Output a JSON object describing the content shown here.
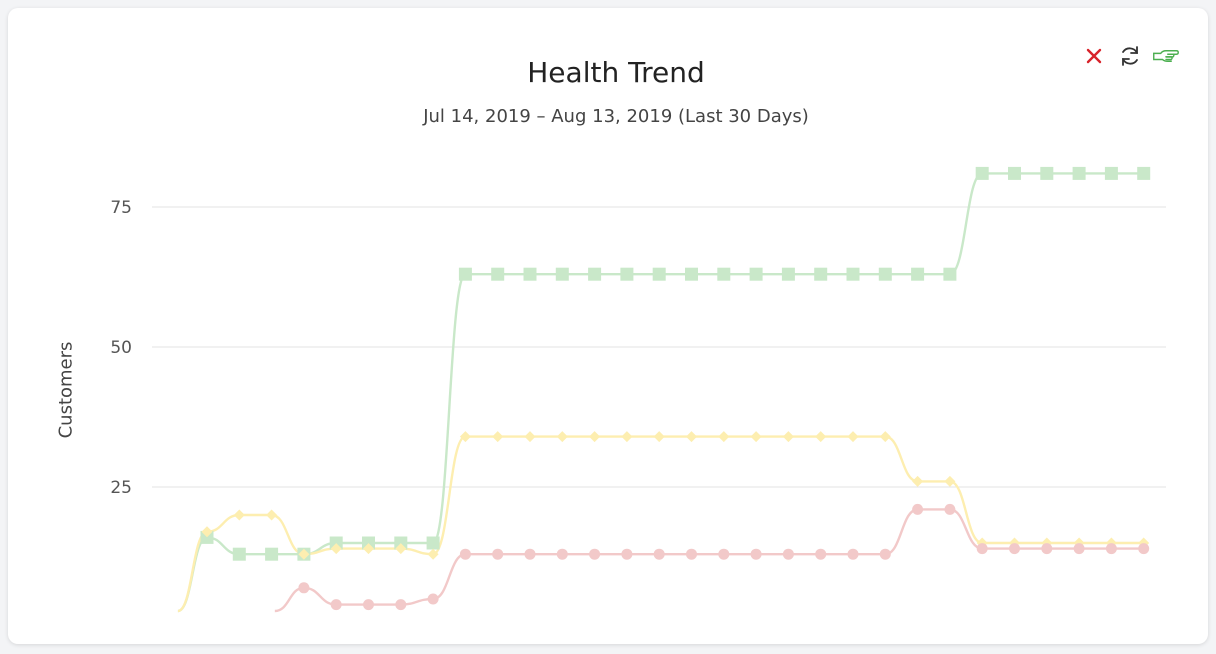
{
  "toolbar": {
    "close_icon": "close-icon",
    "refresh_icon": "refresh-icon",
    "hand_icon": "pointing-hand-icon"
  },
  "chart_data": {
    "type": "line",
    "title": "Health Trend",
    "subtitle": "Jul 14, 2019 – Aug 13, 2019 (Last 30 Days)",
    "xlabel": "",
    "ylabel": "Customers",
    "ylim": [
      0,
      85
    ],
    "yticks": [
      25,
      50,
      75
    ],
    "grid": true,
    "x": [
      1,
      2,
      3,
      4,
      5,
      6,
      7,
      8,
      9,
      10,
      11,
      12,
      13,
      14,
      15,
      16,
      17,
      18,
      19,
      20,
      21,
      22,
      23,
      24,
      25,
      26,
      27,
      28,
      29,
      30
    ],
    "series": [
      {
        "color": "#c9e8c9",
        "marker": "square",
        "values": [
          16,
          13,
          13,
          13,
          15,
          15,
          15,
          15,
          63,
          63,
          63,
          63,
          63,
          63,
          63,
          63,
          63,
          63,
          63,
          63,
          63,
          63,
          63,
          63,
          81,
          81,
          81,
          81,
          81,
          81
        ]
      },
      {
        "color": "#fdeeb0",
        "marker": "diamond",
        "values": [
          17,
          20,
          20,
          13,
          14,
          14,
          14,
          13,
          34,
          34,
          34,
          34,
          34,
          34,
          34,
          34,
          34,
          34,
          34,
          34,
          34,
          34,
          26,
          26,
          15,
          15,
          15,
          15,
          15,
          15
        ]
      },
      {
        "color": "#f2c9c9",
        "marker": "circle",
        "values": [
          null,
          null,
          null,
          7,
          4,
          4,
          4,
          5,
          13,
          13,
          13,
          13,
          13,
          13,
          13,
          13,
          13,
          13,
          13,
          13,
          13,
          13,
          21,
          21,
          14,
          14,
          14,
          14,
          14,
          14
        ]
      }
    ]
  }
}
